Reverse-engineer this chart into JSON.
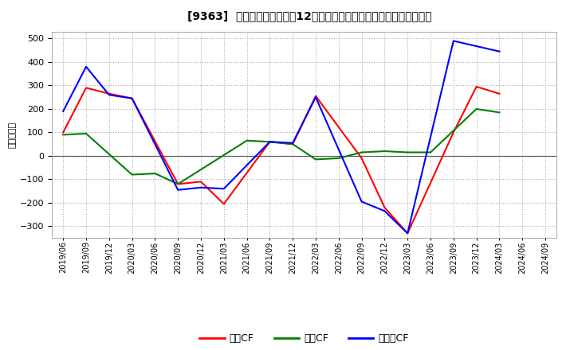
{
  "title": "[9363]  キャッシュフローの12か月移動合計の対前年同期増減額の推移",
  "ylabel": "（百万円）",
  "ylim": [
    -350,
    530
  ],
  "yticks": [
    -300,
    -200,
    -100,
    0,
    100,
    200,
    300,
    400,
    500
  ],
  "bg_color": "#ffffff",
  "grid_color": "#aaaaaa",
  "x_labels": [
    "2019/06",
    "2019/09",
    "2019/12",
    "2020/03",
    "2020/06",
    "2020/09",
    "2020/12",
    "2021/03",
    "2021/06",
    "2021/09",
    "2021/12",
    "2022/03",
    "2022/06",
    "2022/09",
    "2022/12",
    "2023/03",
    "2023/06",
    "2023/09",
    "2023/12",
    "2024/03",
    "2024/06",
    "2024/09"
  ],
  "eigyo_x": [
    0,
    1,
    2,
    3,
    5,
    6,
    7,
    9,
    10,
    11,
    13,
    14,
    15,
    17,
    18,
    19
  ],
  "eigyo_y": [
    100,
    290,
    265,
    245,
    -120,
    -110,
    -205,
    60,
    50,
    255,
    -10,
    -220,
    -330,
    100,
    295,
    265
  ],
  "toshi_x": [
    0,
    1,
    3,
    4,
    5,
    8,
    9,
    10,
    11,
    12,
    13,
    14,
    15,
    16,
    18,
    19
  ],
  "toshi_y": [
    90,
    95,
    -80,
    -75,
    -120,
    65,
    60,
    50,
    -15,
    -10,
    15,
    20,
    15,
    15,
    200,
    185
  ],
  "free_x": [
    0,
    1,
    2,
    3,
    5,
    6,
    7,
    9,
    10,
    11,
    13,
    14,
    15,
    17,
    19
  ],
  "free_y": [
    190,
    380,
    260,
    245,
    -145,
    -135,
    -140,
    60,
    55,
    250,
    -195,
    -235,
    -330,
    490,
    445
  ],
  "series": [
    {
      "label": "営業CF",
      "color": "#ff0000"
    },
    {
      "label": "投資CF",
      "color": "#008000"
    },
    {
      "label": "フリーCF",
      "color": "#0000ff"
    }
  ],
  "linewidth": 1.5
}
